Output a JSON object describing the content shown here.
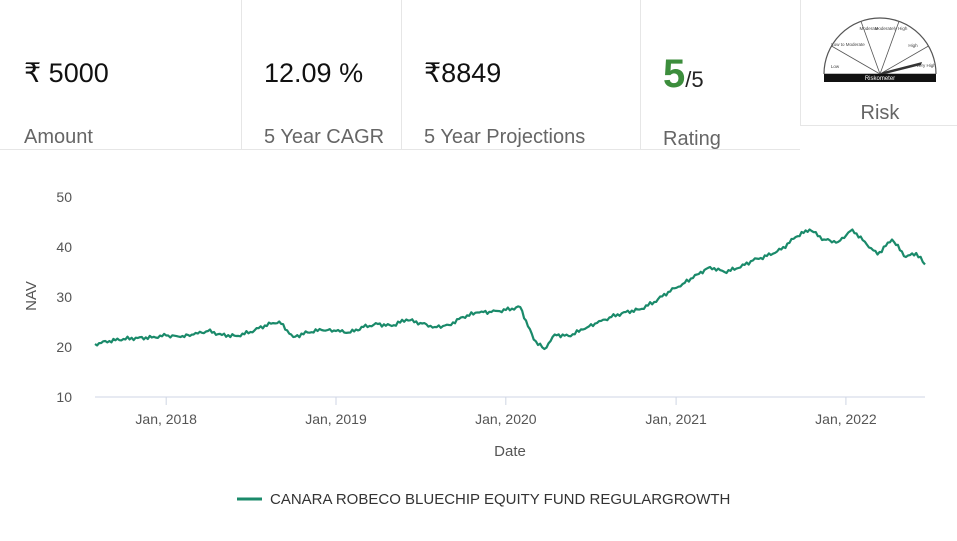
{
  "stats": {
    "amount": {
      "value": "₹ 5000",
      "label": "Amount"
    },
    "cagr": {
      "value": "12.09 %",
      "label": "5 Year CAGR"
    },
    "projection": {
      "value": "₹8849",
      "label": "5 Year Projections"
    },
    "rating": {
      "value": "5",
      "suffix": "/5",
      "label": "Rating",
      "color": "#3c8d3c"
    },
    "risk": {
      "label": "Risk",
      "meter_caption": "Riskometer",
      "meter_segments": [
        "Low",
        "Low to Moderate",
        "Moderate",
        "Moderately High",
        "High",
        "Very High"
      ],
      "level": "Very High"
    }
  },
  "chart_data": {
    "type": "line",
    "title": "",
    "xlabel": "Date",
    "ylabel": "NAV",
    "ylim": [
      10,
      50
    ],
    "yticks": [
      10,
      20,
      30,
      40,
      50
    ],
    "xlim": [
      "2017-08-01",
      "2022-06-20"
    ],
    "xticks": [
      {
        "date": "2018-01-01",
        "label": "Jan, 2018"
      },
      {
        "date": "2019-01-01",
        "label": "Jan, 2019"
      },
      {
        "date": "2020-01-01",
        "label": "Jan, 2020"
      },
      {
        "date": "2021-01-01",
        "label": "Jan, 2021"
      },
      {
        "date": "2022-01-01",
        "label": "Jan, 2022"
      }
    ],
    "grid": false,
    "legend_position": "bottom",
    "series": [
      {
        "name": "CANARA ROBECO BLUECHIP EQUITY FUND REGULARGROWTH",
        "color": "#1a8a6a",
        "points": [
          [
            "2017-08-01",
            20.6
          ],
          [
            "2017-09-01",
            21.2
          ],
          [
            "2017-10-01",
            21.6
          ],
          [
            "2017-11-01",
            21.8
          ],
          [
            "2017-12-01",
            21.9
          ],
          [
            "2018-01-01",
            22.3
          ],
          [
            "2018-02-01",
            22.0
          ],
          [
            "2018-03-01",
            22.5
          ],
          [
            "2018-04-01",
            23.2
          ],
          [
            "2018-05-01",
            22.4
          ],
          [
            "2018-06-01",
            22.2
          ],
          [
            "2018-07-01",
            23.0
          ],
          [
            "2018-08-01",
            24.3
          ],
          [
            "2018-09-01",
            25.1
          ],
          [
            "2018-10-01",
            22.0
          ],
          [
            "2018-11-01",
            22.9
          ],
          [
            "2018-12-01",
            23.4
          ],
          [
            "2019-01-01",
            23.2
          ],
          [
            "2019-02-01",
            22.9
          ],
          [
            "2019-03-01",
            24.0
          ],
          [
            "2019-04-01",
            24.6
          ],
          [
            "2019-05-01",
            24.2
          ],
          [
            "2019-06-01",
            25.5
          ],
          [
            "2019-07-01",
            24.8
          ],
          [
            "2019-08-01",
            24.0
          ],
          [
            "2019-09-01",
            24.4
          ],
          [
            "2019-10-01",
            26.0
          ],
          [
            "2019-11-01",
            26.9
          ],
          [
            "2019-12-01",
            27.0
          ],
          [
            "2020-01-01",
            27.4
          ],
          [
            "2020-02-01",
            28.0
          ],
          [
            "2020-03-01",
            21.5
          ],
          [
            "2020-03-24",
            19.6
          ],
          [
            "2020-04-15",
            22.5
          ],
          [
            "2020-05-15",
            22.2
          ],
          [
            "2020-06-15",
            23.5
          ],
          [
            "2020-07-15",
            24.8
          ],
          [
            "2020-08-15",
            26.0
          ],
          [
            "2020-09-15",
            27.0
          ],
          [
            "2020-10-15",
            27.5
          ],
          [
            "2020-11-15",
            29.0
          ],
          [
            "2020-12-15",
            31.0
          ],
          [
            "2021-01-15",
            32.6
          ],
          [
            "2021-02-15",
            34.5
          ],
          [
            "2021-03-15",
            36.0
          ],
          [
            "2021-04-15",
            35.0
          ],
          [
            "2021-05-15",
            35.8
          ],
          [
            "2021-06-15",
            37.3
          ],
          [
            "2021-07-15",
            38.2
          ],
          [
            "2021-08-15",
            39.5
          ],
          [
            "2021-09-15",
            42.0
          ],
          [
            "2021-10-15",
            43.5
          ],
          [
            "2021-11-15",
            41.5
          ],
          [
            "2021-12-15",
            41.0
          ],
          [
            "2022-01-15",
            43.5
          ],
          [
            "2022-02-15",
            40.5
          ],
          [
            "2022-03-10",
            38.5
          ],
          [
            "2022-04-10",
            41.5
          ],
          [
            "2022-05-10",
            38.0
          ],
          [
            "2022-06-01",
            38.8
          ],
          [
            "2022-06-20",
            36.5
          ]
        ]
      }
    ]
  }
}
